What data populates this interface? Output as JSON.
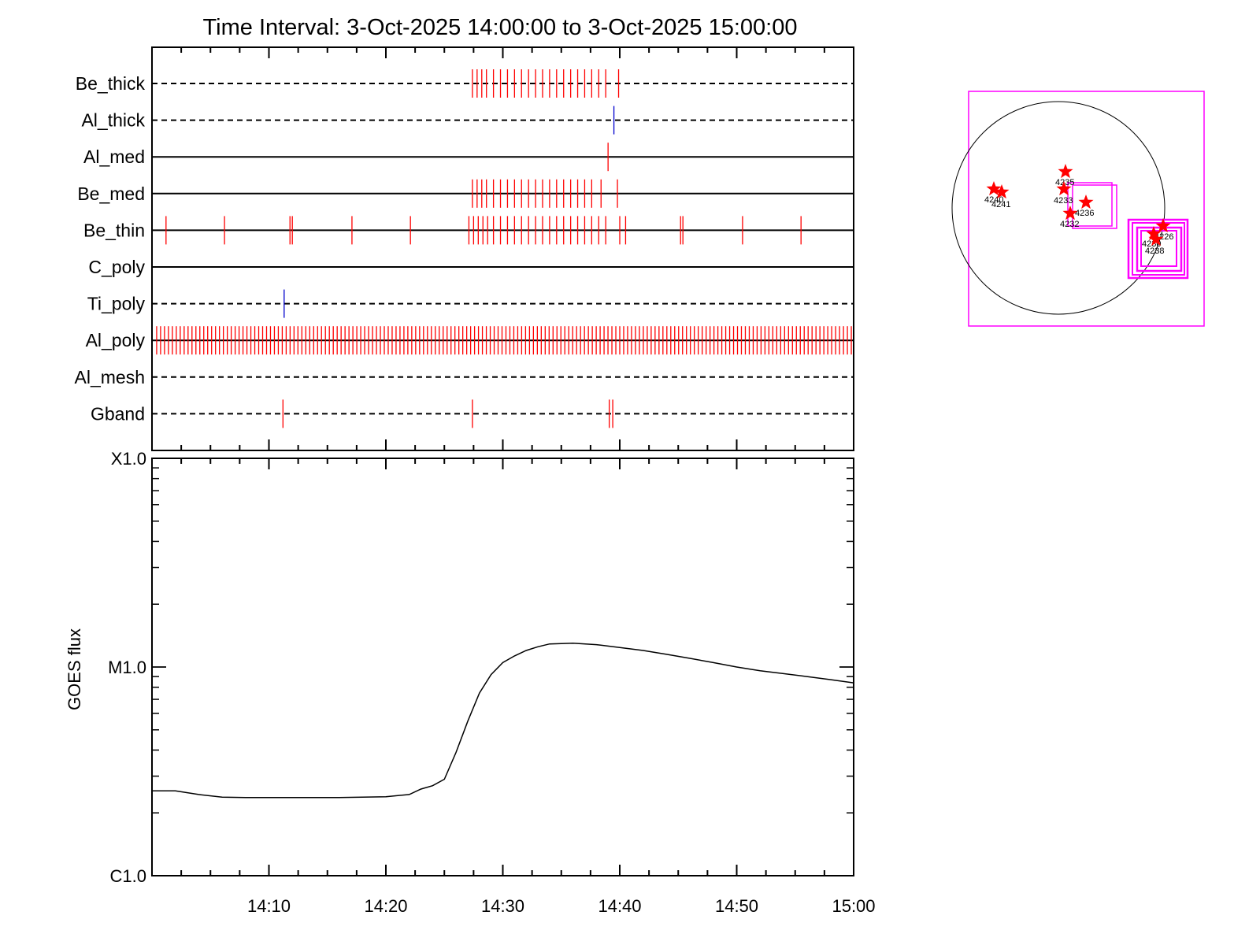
{
  "chart_data": {
    "type": "line",
    "title": "Time Interval:  3-Oct-2025 14:00:00 to  3-Oct-2025 15:00:00",
    "time_start": "14:00",
    "time_end": "15:00",
    "xticks": [
      "14:10",
      "14:20",
      "14:30",
      "14:40",
      "14:50",
      "15:00"
    ],
    "xtick_minutes": [
      10,
      20,
      30,
      40,
      50,
      60
    ],
    "ylabel": "GOES flux",
    "y_scale": "log",
    "ylim": [
      1e-06,
      0.0001
    ],
    "yticks": [
      {
        "label": "X1.0",
        "value": 0.0001
      },
      {
        "label": "M1.0",
        "value": 1e-05
      },
      {
        "label": "C1.0",
        "value": 1e-06
      }
    ],
    "goes_series": {
      "name": "",
      "minutes": [
        0,
        2,
        4,
        6,
        8,
        10,
        12,
        14,
        16,
        18,
        20,
        22,
        23,
        24,
        25,
        26,
        27,
        28,
        29,
        30,
        31,
        32,
        33,
        34,
        36,
        38,
        40,
        42,
        44,
        46,
        48,
        50,
        52,
        54,
        56,
        58,
        60
      ],
      "values": [
        2.55e-06,
        2.55e-06,
        2.45e-06,
        2.38e-06,
        2.37e-06,
        2.37e-06,
        2.37e-06,
        2.37e-06,
        2.37e-06,
        2.38e-06,
        2.39e-06,
        2.45e-06,
        2.6e-06,
        2.7e-06,
        2.9e-06,
        3.9e-06,
        5.5e-06,
        7.5e-06,
        9.2e-06,
        1.05e-05,
        1.13e-05,
        1.2e-05,
        1.25e-05,
        1.29e-05,
        1.3e-05,
        1.28e-05,
        1.24e-05,
        1.2e-05,
        1.15e-05,
        1.1e-05,
        1.05e-05,
        1e-05,
        9.6e-06,
        9.3e-06,
        9e-06,
        8.7e-06,
        8.4e-06
      ]
    },
    "attenuator_rows": [
      {
        "name": "Be_thick",
        "line": "dashed",
        "marks": [
          {
            "t": 27.4,
            "color": "#ff0000"
          },
          {
            "t": 27.8,
            "color": "#ff0000"
          },
          {
            "t": 28.2,
            "color": "#ff0000"
          },
          {
            "t": 28.6,
            "color": "#ff0000"
          },
          {
            "t": 29.2,
            "color": "#ff0000"
          },
          {
            "t": 29.8,
            "color": "#ff0000"
          },
          {
            "t": 30.4,
            "color": "#ff0000"
          },
          {
            "t": 31.0,
            "color": "#ff0000"
          },
          {
            "t": 31.6,
            "color": "#ff0000"
          },
          {
            "t": 32.2,
            "color": "#ff0000"
          },
          {
            "t": 32.8,
            "color": "#ff0000"
          },
          {
            "t": 33.4,
            "color": "#ff0000"
          },
          {
            "t": 34.0,
            "color": "#ff0000"
          },
          {
            "t": 34.6,
            "color": "#ff0000"
          },
          {
            "t": 35.2,
            "color": "#ff0000"
          },
          {
            "t": 35.8,
            "color": "#ff0000"
          },
          {
            "t": 36.4,
            "color": "#ff0000"
          },
          {
            "t": 37.0,
            "color": "#ff0000"
          },
          {
            "t": 37.6,
            "color": "#ff0000"
          },
          {
            "t": 38.2,
            "color": "#ff0000"
          },
          {
            "t": 38.8,
            "color": "#ff0000"
          },
          {
            "t": 39.9,
            "color": "#ff0000"
          }
        ]
      },
      {
        "name": "Al_thick",
        "line": "dashed",
        "marks": [
          {
            "t": 39.5,
            "color": "#0000cc"
          }
        ]
      },
      {
        "name": "Al_med",
        "line": "solid",
        "marks": [
          {
            "t": 39.0,
            "color": "#ff0000"
          }
        ]
      },
      {
        "name": "Be_med",
        "line": "solid",
        "marks": [
          {
            "t": 27.4,
            "color": "#ff0000"
          },
          {
            "t": 27.8,
            "color": "#ff0000"
          },
          {
            "t": 28.2,
            "color": "#ff0000"
          },
          {
            "t": 28.6,
            "color": "#ff0000"
          },
          {
            "t": 29.2,
            "color": "#ff0000"
          },
          {
            "t": 29.8,
            "color": "#ff0000"
          },
          {
            "t": 30.4,
            "color": "#ff0000"
          },
          {
            "t": 31.0,
            "color": "#ff0000"
          },
          {
            "t": 31.6,
            "color": "#ff0000"
          },
          {
            "t": 32.2,
            "color": "#ff0000"
          },
          {
            "t": 32.8,
            "color": "#ff0000"
          },
          {
            "t": 33.4,
            "color": "#ff0000"
          },
          {
            "t": 34.0,
            "color": "#ff0000"
          },
          {
            "t": 34.6,
            "color": "#ff0000"
          },
          {
            "t": 35.2,
            "color": "#ff0000"
          },
          {
            "t": 35.8,
            "color": "#ff0000"
          },
          {
            "t": 36.4,
            "color": "#ff0000"
          },
          {
            "t": 37.0,
            "color": "#ff0000"
          },
          {
            "t": 37.6,
            "color": "#ff0000"
          },
          {
            "t": 38.4,
            "color": "#ff0000"
          },
          {
            "t": 39.8,
            "color": "#ff0000"
          }
        ]
      },
      {
        "name": "Be_thin",
        "line": "solid",
        "marks": [
          {
            "t": 1.2,
            "color": "#ff0000"
          },
          {
            "t": 6.2,
            "color": "#ff0000"
          },
          {
            "t": 11.8,
            "color": "#ff0000"
          },
          {
            "t": 12.0,
            "color": "#ff0000"
          },
          {
            "t": 17.1,
            "color": "#ff0000"
          },
          {
            "t": 22.1,
            "color": "#ff0000"
          },
          {
            "t": 27.1,
            "color": "#ff0000"
          },
          {
            "t": 27.5,
            "color": "#ff0000"
          },
          {
            "t": 27.9,
            "color": "#ff0000"
          },
          {
            "t": 28.3,
            "color": "#ff0000"
          },
          {
            "t": 28.7,
            "color": "#ff0000"
          },
          {
            "t": 29.2,
            "color": "#ff0000"
          },
          {
            "t": 29.8,
            "color": "#ff0000"
          },
          {
            "t": 30.4,
            "color": "#ff0000"
          },
          {
            "t": 31.0,
            "color": "#ff0000"
          },
          {
            "t": 31.6,
            "color": "#ff0000"
          },
          {
            "t": 32.2,
            "color": "#ff0000"
          },
          {
            "t": 32.8,
            "color": "#ff0000"
          },
          {
            "t": 33.4,
            "color": "#ff0000"
          },
          {
            "t": 34.0,
            "color": "#ff0000"
          },
          {
            "t": 34.6,
            "color": "#ff0000"
          },
          {
            "t": 35.2,
            "color": "#ff0000"
          },
          {
            "t": 35.8,
            "color": "#ff0000"
          },
          {
            "t": 36.4,
            "color": "#ff0000"
          },
          {
            "t": 37.0,
            "color": "#ff0000"
          },
          {
            "t": 37.6,
            "color": "#ff0000"
          },
          {
            "t": 38.2,
            "color": "#ff0000"
          },
          {
            "t": 38.8,
            "color": "#ff0000"
          },
          {
            "t": 40.0,
            "color": "#ff0000"
          },
          {
            "t": 40.5,
            "color": "#ff0000"
          },
          {
            "t": 45.2,
            "color": "#ff0000"
          },
          {
            "t": 45.4,
            "color": "#ff0000"
          },
          {
            "t": 50.5,
            "color": "#ff0000"
          },
          {
            "t": 55.5,
            "color": "#ff0000"
          }
        ]
      },
      {
        "name": "C_poly",
        "line": "solid",
        "marks": []
      },
      {
        "name": "Ti_poly",
        "line": "dashed",
        "marks": [
          {
            "t": 11.3,
            "color": "#0000cc"
          }
        ]
      },
      {
        "name": "Al_poly",
        "line": "solid",
        "dense": {
          "start": 0.4,
          "end": 59.8,
          "count": 178
        },
        "marks": []
      },
      {
        "name": "Al_mesh",
        "line": "dashed",
        "marks": []
      },
      {
        "name": "Gband",
        "line": "dashed",
        "marks": [
          {
            "t": 11.2,
            "color": "#ff0000"
          },
          {
            "t": 27.4,
            "color": "#ff0000"
          },
          {
            "t": 39.1,
            "color": "#ff0000"
          },
          {
            "t": 39.4,
            "color": "#ff0000"
          }
        ]
      }
    ],
    "solar_map": {
      "star_color": "#ff0000",
      "box_color": "#ff00ff",
      "regions": [
        {
          "label": "4235"
        },
        {
          "label": "4233"
        },
        {
          "label": "4236"
        },
        {
          "label": "4232"
        },
        {
          "label": "4240"
        },
        {
          "label": "4241"
        },
        {
          "label": "4226"
        },
        {
          "label": "4230"
        },
        {
          "label": "4238"
        }
      ]
    }
  }
}
